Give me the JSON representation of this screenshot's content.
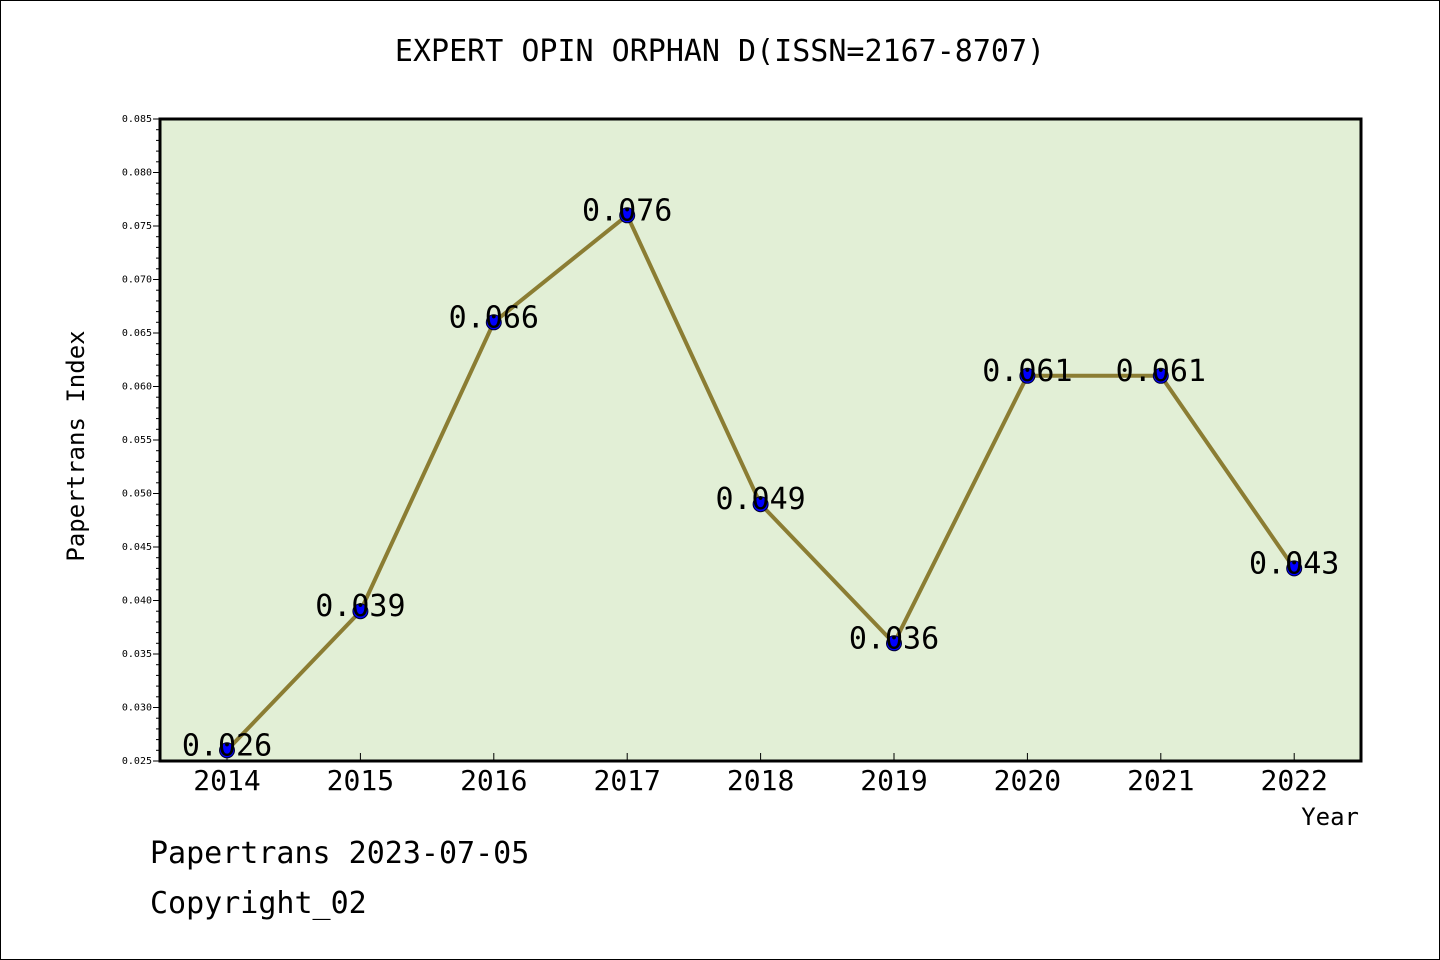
{
  "chart_data": {
    "type": "line",
    "title": "EXPERT OPIN ORPHAN D(ISSN=2167-8707)",
    "xlabel": "Year",
    "ylabel": "Papertrans Index",
    "categories": [
      "2014",
      "2015",
      "2016",
      "2017",
      "2018",
      "2019",
      "2020",
      "2021",
      "2022"
    ],
    "values": [
      0.026,
      0.039,
      0.066,
      0.076,
      0.049,
      0.036,
      0.061,
      0.061,
      0.043
    ],
    "data_labels": [
      "0.026",
      "0.039",
      "0.066",
      "0.076",
      "0.049",
      "0.036",
      "0.061",
      "0.061",
      "0.043"
    ],
    "ylim": [
      0.025,
      0.085
    ],
    "y_ticks": [
      "0.025",
      "0.030",
      "0.035",
      "0.040",
      "0.045",
      "0.050",
      "0.055",
      "0.060",
      "0.065",
      "0.070",
      "0.075",
      "0.080",
      "0.085"
    ],
    "grid": false,
    "colors": {
      "line": "#8B7D33",
      "marker": "#0000FF",
      "plot_background": "#E2EFD6",
      "axes": "#000000"
    }
  },
  "footer": {
    "line1": "Papertrans 2023-07-05",
    "line2": "Copyright_02"
  }
}
